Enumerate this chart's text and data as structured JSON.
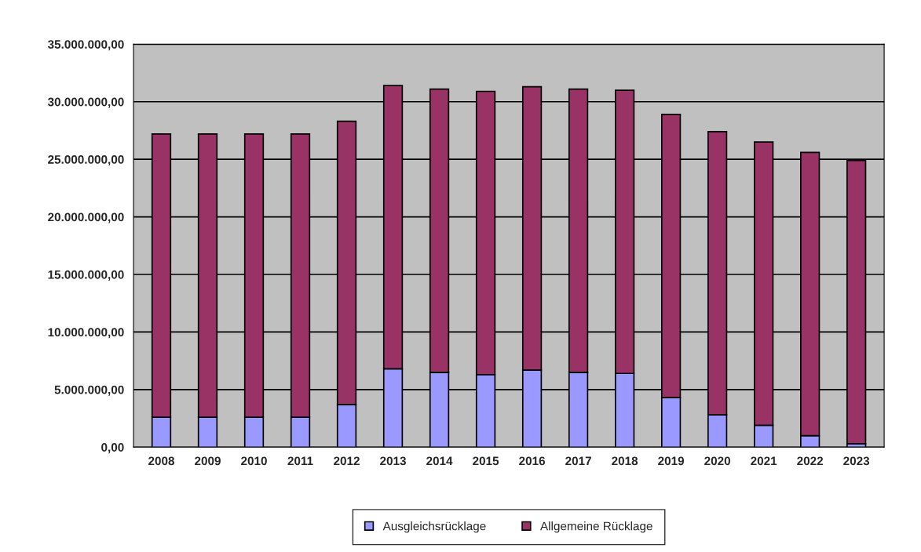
{
  "chart_data": {
    "type": "bar",
    "stacked": true,
    "categories": [
      "2008",
      "2009",
      "2010",
      "2011",
      "2012",
      "2013",
      "2014",
      "2015",
      "2016",
      "2017",
      "2018",
      "2019",
      "2020",
      "2021",
      "2022",
      "2023"
    ],
    "series": [
      {
        "name": "Ausgleichsrücklage",
        "color": "#9999ff",
        "values": [
          2600000,
          2600000,
          2600000,
          2600000,
          3700000,
          6800000,
          6500000,
          6300000,
          6700000,
          6500000,
          6400000,
          4300000,
          2800000,
          1900000,
          1000000,
          300000
        ]
      },
      {
        "name": "Allgemeine Rücklage",
        "color": "#993366",
        "values": [
          24600000,
          24600000,
          24600000,
          24600000,
          24600000,
          24600000,
          24600000,
          24600000,
          24600000,
          24600000,
          24600000,
          24600000,
          24600000,
          24600000,
          24600000,
          24600000
        ]
      }
    ],
    "ylim": [
      0,
      35000000
    ],
    "yticks": [
      {
        "value": 0,
        "label": "0,00"
      },
      {
        "value": 5000000,
        "label": "5.000.000,00"
      },
      {
        "value": 10000000,
        "label": "10.000.000,00"
      },
      {
        "value": 15000000,
        "label": "15.000.000,00"
      },
      {
        "value": 20000000,
        "label": "20.000.000,00"
      },
      {
        "value": 25000000,
        "label": "25.000.000,00"
      },
      {
        "value": 30000000,
        "label": "30.000.000,00"
      },
      {
        "value": 35000000,
        "label": "35.000.000,00"
      }
    ],
    "grid": "y",
    "legend": "bottom"
  }
}
